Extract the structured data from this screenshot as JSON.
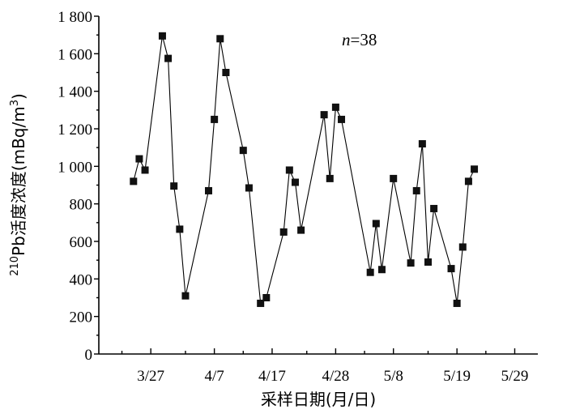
{
  "chart_data": {
    "type": "line",
    "title": "",
    "annotation": {
      "prefix": "n",
      "value": "=38"
    },
    "xlabel": "采样日期(月/日)",
    "ylabel": {
      "sup": "210",
      "main": "Pb活度浓度",
      "unit": "(mBq/m",
      "unit_sup": "3",
      "unit_end": ")"
    },
    "grid": false,
    "legend": "none",
    "ylim": [
      0,
      1800
    ],
    "y_ticks": [
      0,
      200,
      400,
      600,
      800,
      1000,
      1200,
      1400,
      1600,
      1800
    ],
    "y_tick_labels": [
      "0",
      "200",
      "400",
      "600",
      "800",
      "1 000",
      "1 200",
      "1 400",
      "1 600",
      "1 800"
    ],
    "x_axis": {
      "start": "2000-03-18",
      "end": "2000-06-02"
    },
    "x_ticks": [
      {
        "date": "2000-03-27",
        "label": "3/27"
      },
      {
        "date": "2000-04-07",
        "label": "4/7"
      },
      {
        "date": "2000-04-17",
        "label": "4/17"
      },
      {
        "date": "2000-04-28",
        "label": "4/28"
      },
      {
        "date": "2000-05-08",
        "label": "5/8"
      },
      {
        "date": "2000-05-19",
        "label": "5/19"
      },
      {
        "date": "2000-05-29",
        "label": "5/29"
      }
    ],
    "x_minor_ticks": [
      "2000-03-22",
      "2000-04-02",
      "2000-04-12",
      "2000-04-23",
      "2000-05-03",
      "2000-05-14",
      "2000-05-24"
    ],
    "series": [
      {
        "marker": "square",
        "color": "#000000",
        "points": [
          {
            "x": "2000-03-24",
            "y": 920
          },
          {
            "x": "2000-03-25",
            "y": 1040
          },
          {
            "x": "2000-03-26",
            "y": 980
          },
          {
            "x": "2000-03-29",
            "y": 1695
          },
          {
            "x": "2000-03-30",
            "y": 1575
          },
          {
            "x": "2000-03-31",
            "y": 895
          },
          {
            "x": "2000-04-01",
            "y": 665
          },
          {
            "x": "2000-04-02",
            "y": 310
          },
          {
            "x": "2000-04-06",
            "y": 870
          },
          {
            "x": "2000-04-07",
            "y": 1250
          },
          {
            "x": "2000-04-08",
            "y": 1680
          },
          {
            "x": "2000-04-09",
            "y": 1500
          },
          {
            "x": "2000-04-12",
            "y": 1085
          },
          {
            "x": "2000-04-13",
            "y": 885
          },
          {
            "x": "2000-04-15",
            "y": 270
          },
          {
            "x": "2000-04-16",
            "y": 300
          },
          {
            "x": "2000-04-19",
            "y": 650
          },
          {
            "x": "2000-04-20",
            "y": 980
          },
          {
            "x": "2000-04-21",
            "y": 915
          },
          {
            "x": "2000-04-22",
            "y": 660
          },
          {
            "x": "2000-04-26",
            "y": 1275
          },
          {
            "x": "2000-04-27",
            "y": 935
          },
          {
            "x": "2000-04-28",
            "y": 1315
          },
          {
            "x": "2000-04-29",
            "y": 1250
          },
          {
            "x": "2000-05-04",
            "y": 435
          },
          {
            "x": "2000-05-05",
            "y": 695
          },
          {
            "x": "2000-05-06",
            "y": 450
          },
          {
            "x": "2000-05-08",
            "y": 935
          },
          {
            "x": "2000-05-11",
            "y": 485
          },
          {
            "x": "2000-05-12",
            "y": 870
          },
          {
            "x": "2000-05-13",
            "y": 1120
          },
          {
            "x": "2000-05-14",
            "y": 490
          },
          {
            "x": "2000-05-15",
            "y": 775
          },
          {
            "x": "2000-05-18",
            "y": 455
          },
          {
            "x": "2000-05-19",
            "y": 270
          },
          {
            "x": "2000-05-20",
            "y": 570
          },
          {
            "x": "2000-05-21",
            "y": 920
          },
          {
            "x": "2000-05-22",
            "y": 985
          }
        ]
      }
    ]
  }
}
